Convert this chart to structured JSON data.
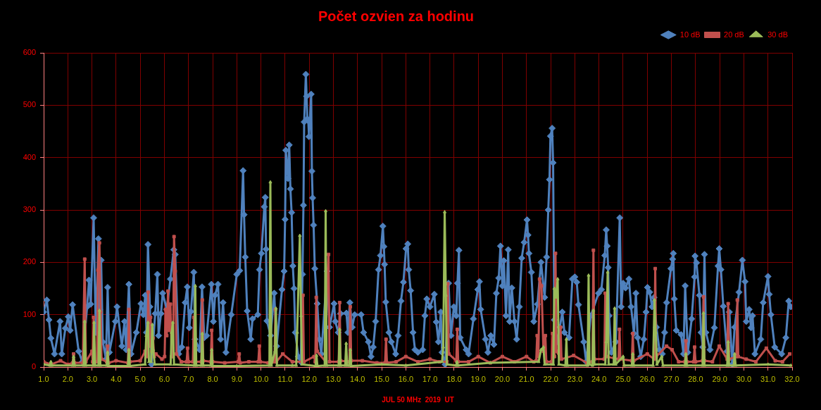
{
  "chart_data": {
    "type": "line",
    "title": "Počet ozvien za hodinu",
    "xlabel": "JUL 50 MHz  2019  UT",
    "xlim": [
      1,
      32
    ],
    "xticks": [
      {
        "value": 1,
        "label": "1.0"
      },
      {
        "value": 2,
        "label": "2.0"
      },
      {
        "value": 3,
        "label": "3.0"
      },
      {
        "value": 4,
        "label": "4.0"
      },
      {
        "value": 5,
        "label": "5.0"
      },
      {
        "value": 6,
        "label": "6.0"
      },
      {
        "value": 7,
        "label": "7.0"
      },
      {
        "value": 8,
        "label": "8.0"
      },
      {
        "value": 9,
        "label": "9.0"
      },
      {
        "value": 10,
        "label": "10.0"
      },
      {
        "value": 11,
        "label": "11.0"
      },
      {
        "value": 12,
        "label": "12.0"
      },
      {
        "value": 13,
        "label": "13.0"
      },
      {
        "value": 14,
        "label": "14.0"
      },
      {
        "value": 15,
        "label": "15.0"
      },
      {
        "value": 16,
        "label": "16.0"
      },
      {
        "value": 17,
        "label": "17.0"
      },
      {
        "value": 18,
        "label": "18.0"
      },
      {
        "value": 19,
        "label": "19.0"
      },
      {
        "value": 20,
        "label": "20.0"
      },
      {
        "value": 21,
        "label": "21.0"
      },
      {
        "value": 22,
        "label": "22.0"
      },
      {
        "value": 23,
        "label": "23.0"
      },
      {
        "value": 24,
        "label": "24.0"
      },
      {
        "value": 25,
        "label": "25.0"
      },
      {
        "value": 26,
        "label": "26.0"
      },
      {
        "value": 27,
        "label": "27.0"
      },
      {
        "value": 28,
        "label": "28.0"
      },
      {
        "value": 29,
        "label": "29.0"
      },
      {
        "value": 30,
        "label": "30.0"
      },
      {
        "value": 31,
        "label": "31.0"
      },
      {
        "value": 32,
        "label": "32.0"
      }
    ],
    "ylim": [
      0,
      600
    ],
    "yticks": [
      0,
      100,
      200,
      300,
      400,
      500,
      600
    ],
    "grid": true,
    "legend": "top right",
    "line_style": "solid",
    "series": [
      {
        "name": "10 dB",
        "color": "#4f81bd",
        "marker": "diamond",
        "x": [
          1,
          1.13,
          1.22,
          1.3,
          1.45,
          1.68,
          1.75,
          1.9,
          2.02,
          2.1,
          2.2,
          2.45,
          2.6,
          2.8,
          2.88,
          2.95,
          3.07,
          3.16,
          3.27,
          3.32,
          3.38,
          3.45,
          3.58,
          3.65,
          3.72,
          3.97,
          4.04,
          4.24,
          4.35,
          4.42,
          4.53,
          4.62,
          4.84,
          5.03,
          5.13,
          5.21,
          5.26,
          5.32,
          5.4,
          5.47,
          5.62,
          5.71,
          5.76,
          5.86,
          5.93,
          6.1,
          6.25,
          6.39,
          6.45,
          6.59,
          6.72,
          6.86,
          6.95,
          7.03,
          7.1,
          7.22,
          7.27,
          7.46,
          7.56,
          7.65,
          7.75,
          7.95,
          8.03,
          8.1,
          8.22,
          8.33,
          8.43,
          8.55,
          8.77,
          9,
          9.12,
          9.26,
          9.3,
          9.35,
          9.43,
          9.58,
          9.65,
          9.87,
          9.94,
          10.02,
          10.14,
          10.18,
          10.21,
          10.25,
          10.4,
          10.55,
          10.65,
          10.87,
          10.96,
          11,
          11.03,
          11.12,
          11.17,
          11.22,
          11.27,
          11.32,
          11.37,
          11.42,
          11.55,
          11.65,
          11.72,
          11.76,
          11.79,
          11.86,
          11.89,
          11.92,
          11.96,
          11.99,
          12.08,
          12.11,
          12.14,
          12.18,
          12.23,
          12.33,
          12.42,
          12.5,
          12.74,
          12.84,
          13.03,
          13.08,
          13.2,
          13.3,
          13.54,
          13.6,
          13.68,
          13.78,
          13.88,
          14.15,
          14.25,
          14.45,
          14.56,
          14.65,
          14.75,
          14.87,
          14.95,
          15.05,
          15.09,
          15.12,
          15.17,
          15.3,
          15.4,
          15.58,
          15.68,
          15.8,
          15.9,
          16.01,
          16.08,
          16.12,
          16.2,
          16.3,
          16.38,
          16.5,
          16.7,
          16.79,
          16.87,
          17,
          17.18,
          17.26,
          17.35,
          17.45,
          17.5,
          17.63,
          17.77,
          17.87,
          17.99,
          18.09,
          18.14,
          18.2,
          18.25,
          18.5,
          18.6,
          18.8,
          18.98,
          19.05,
          19.1,
          19.3,
          19.4,
          19.52,
          19.65,
          19.75,
          19.85,
          19.92,
          20,
          20.06,
          20.15,
          20.24,
          20.3,
          20.39,
          20.5,
          20.59,
          20.7,
          20.8,
          20.9,
          21.02,
          21.06,
          21.1,
          21.2,
          21.3,
          21.45,
          21.6,
          21.75,
          21.83,
          21.9,
          21.95,
          21.99,
          22.06,
          22.1,
          22.15,
          22.26,
          22.38,
          22.48,
          22.57,
          22.76,
          22.9,
          23,
          23.08,
          23.15,
          23.37,
          23.47,
          23.66,
          23.98,
          24.1,
          24.24,
          24.3,
          24.34,
          24.38,
          24.42,
          24.51,
          24.7,
          24.86,
          24.92,
          25,
          25.1,
          25.24,
          25.33,
          25.45,
          25.53,
          25.6,
          25.73,
          25.86,
          25.95,
          26.01,
          26.1,
          26.2,
          26.28,
          26.38,
          26.5,
          26.62,
          26.72,
          26.8,
          26.98,
          27.05,
          27.08,
          27.12,
          27.2,
          27.4,
          27.5,
          27.57,
          27.68,
          27.84,
          27.96,
          27.98,
          28.04,
          28.16,
          28.23,
          28.3,
          28.37,
          28.43,
          28.6,
          28.78,
          28.93,
          28.98,
          29.05,
          29.15,
          29.3,
          29.4,
          29.52,
          29.62,
          29.8,
          29.94,
          30.05,
          30.1,
          30.22,
          30.3,
          30.36,
          30.46,
          30.7,
          30.8,
          31,
          31.05,
          31.12,
          31.28,
          31.57,
          31.74,
          31.86,
          31.95
        ],
        "values": [
          105,
          128,
          90,
          55,
          25,
          87,
          25,
          74,
          96,
          70,
          119,
          30,
          10,
          115,
          166,
          120,
          285,
          66,
          245,
          110,
          204,
          48,
          15,
          152,
          28,
          87,
          115,
          40,
          87,
          33,
          158,
          25,
          66,
          121,
          100,
          137,
          66,
          234,
          115,
          5,
          102,
          177,
          60,
          102,
          141,
          110,
          168,
          224,
          215,
          25,
          38,
          123,
          153,
          75,
          106,
          181,
          53,
          33,
          153,
          56,
          60,
          158,
          87,
          137,
          158,
          53,
          123,
          28,
          100,
          177,
          184,
          375,
          291,
          210,
          107,
          53,
          92,
          100,
          186,
          217,
          306,
          324,
          225,
          88,
          60,
          141,
          40,
          148,
          183,
          282,
          414,
          360,
          424,
          340,
          295,
          193,
          150,
          66,
          20,
          10,
          177,
          309,
          468,
          559,
          517,
          474,
          470,
          440,
          521,
          374,
          323,
          271,
          188,
          121,
          53,
          25,
          183,
          76,
          121,
          87,
          66,
          102,
          103,
          66,
          123,
          76,
          100,
          100,
          66,
          48,
          20,
          38,
          87,
          186,
          213,
          269,
          230,
          196,
          124,
          66,
          48,
          25,
          60,
          126,
          162,
          226,
          235,
          186,
          146,
          66,
          33,
          28,
          33,
          98,
          130,
          115,
          139,
          86,
          48,
          105,
          28,
          5,
          160,
          60,
          115,
          98,
          160,
          223,
          56,
          33,
          25,
          92,
          148,
          163,
          110,
          53,
          28,
          60,
          43,
          141,
          170,
          231,
          155,
          203,
          98,
          224,
          87,
          151,
          87,
          53,
          115,
          208,
          238,
          281,
          252,
          217,
          181,
          87,
          120,
          200,
          133,
          210,
          300,
          358,
          441,
          456,
          390,
          90,
          48,
          76,
          105,
          66,
          56,
          168,
          172,
          162,
          119,
          48,
          10,
          98,
          141,
          148,
          213,
          262,
          231,
          190,
          98,
          28,
          48,
          285,
          115,
          160,
          151,
          168,
          115,
          64,
          141,
          56,
          20,
          53,
          105,
          152,
          143,
          115,
          133,
          76,
          33,
          25,
          66,
          123,
          188,
          206,
          217,
          130,
          70,
          62,
          25,
          155,
          28,
          92,
          172,
          212,
          199,
          137,
          66,
          38,
          215,
          66,
          33,
          75,
          193,
          226,
          186,
          116,
          30,
          105,
          5,
          76,
          143,
          204,
          163,
          87,
          110,
          75,
          98,
          25,
          53,
          123,
          173,
          139,
          100,
          38,
          25,
          56,
          126,
          115
        ]
      },
      {
        "name": "20 dB",
        "color": "#c0504d",
        "marker": "square",
        "x": [
          1,
          1.3,
          1.7,
          2,
          2.2,
          2.24,
          2.28,
          2.62,
          2.7,
          2.75,
          3,
          3.03,
          3.07,
          3.11,
          3.21,
          3.25,
          3.31,
          3.36,
          3.4,
          3.61,
          3.65,
          3.69,
          4,
          4.49,
          4.53,
          4.57,
          5,
          5.2,
          5.29,
          5.33,
          5.38,
          5.43,
          5.48,
          5.53,
          5.58,
          5.65,
          5.9,
          6.01,
          6.05,
          6.1,
          6.15,
          6.2,
          6.25,
          6.3,
          6.36,
          6.4,
          6.45,
          6.5,
          6.7,
          6.92,
          6.96,
          7,
          7.18,
          7.22,
          7.26,
          7.53,
          7.57,
          7.61,
          7.92,
          7.96,
          8,
          8.5,
          9.06,
          9.1,
          9.14,
          9.5,
          9.89,
          9.93,
          9.97,
          10.3,
          10.56,
          10.6,
          10.64,
          10.9,
          11.3,
          11.7,
          11.74,
          11.78,
          12.2,
          12.25,
          12.29,
          12.33,
          12.68,
          12.73,
          12.8,
          12.84,
          13.22,
          13.26,
          13.3,
          13.66,
          13.7,
          13.74,
          14.2,
          14.8,
          15.14,
          15.18,
          15.22,
          15.6,
          16,
          16.5,
          17,
          17.4,
          17.7,
          17.74,
          17.78,
          18.09,
          18.13,
          18.17,
          18.6,
          19,
          19.5,
          20,
          20.5,
          21,
          21.3,
          21.4,
          21.44,
          21.49,
          21.54,
          21.62,
          21.7,
          21.78,
          21.82,
          22.04,
          22.08,
          22.12,
          22.16,
          22.2,
          22.24,
          22.37,
          22.41,
          22.45,
          22.95,
          23.5,
          23.73,
          23.77,
          23.81,
          24.22,
          24.26,
          24.3,
          24.81,
          24.85,
          24.89,
          25.36,
          25.4,
          25.44,
          26,
          26.29,
          26.33,
          26.37,
          26.8,
          27.03,
          27.3,
          27.56,
          27.6,
          27.64,
          27.92,
          27.96,
          28,
          28.29,
          28.33,
          28.37,
          28.7,
          28.98,
          29.31,
          29.35,
          29.39,
          29.69,
          29.73,
          29.77,
          30.1,
          30.5,
          30.93,
          31.3,
          31.6,
          31.9
        ],
        "values": [
          10,
          5,
          12,
          5,
          8,
          25,
          8,
          8,
          206,
          10,
          30,
          10,
          95,
          10,
          10,
          185,
          237,
          105,
          15,
          10,
          40,
          8,
          12,
          8,
          110,
          10,
          12,
          30,
          20,
          143,
          40,
          95,
          30,
          55,
          20,
          25,
          15,
          20,
          110,
          60,
          145,
          70,
          120,
          20,
          20,
          249,
          183,
          25,
          10,
          10,
          36,
          10,
          10,
          95,
          10,
          10,
          128,
          12,
          10,
          70,
          10,
          8,
          10,
          25,
          8,
          10,
          10,
          40,
          10,
          8,
          10,
          110,
          10,
          25,
          10,
          10,
          137,
          10,
          20,
          10,
          133,
          30,
          10,
          155,
          215,
          10,
          10,
          123,
          12,
          10,
          115,
          12,
          12,
          8,
          8,
          53,
          8,
          10,
          20,
          10,
          15,
          10,
          10,
          159,
          25,
          12,
          72,
          10,
          10,
          20,
          8,
          20,
          10,
          20,
          10,
          12,
          60,
          20,
          168,
          155,
          30,
          60,
          10,
          10,
          64,
          20,
          20,
          217,
          30,
          20,
          76,
          15,
          22,
          8,
          10,
          223,
          15,
          15,
          141,
          20,
          15,
          72,
          15,
          12,
          64,
          12,
          25,
          15,
          188,
          20,
          40,
          33,
          10,
          10,
          50,
          10,
          10,
          38,
          10,
          12,
          134,
          12,
          10,
          40,
          15,
          121,
          15,
          20,
          128,
          20,
          15,
          10,
          36,
          12,
          10,
          25
        ]
      },
      {
        "name": "30 dB",
        "color": "#9bbb59",
        "marker": "triangle",
        "x": [
          1,
          1.26,
          1.3,
          1.34,
          2.2,
          2.24,
          2.28,
          2.66,
          2.7,
          2.74,
          3.05,
          3.09,
          3.13,
          3.27,
          3.31,
          3.35,
          3.61,
          3.65,
          3.69,
          4.49,
          4.53,
          4.57,
          5.2,
          5.25,
          5.32,
          5.36,
          5.45,
          5.5,
          5.54,
          5.6,
          6.26,
          6.3,
          6.35,
          6.4,
          7.24,
          7.28,
          7.32,
          7.53,
          7.57,
          7.61,
          7.92,
          7.96,
          8,
          9,
          10.35,
          10.39,
          10.43,
          10.58,
          10.62,
          10.66,
          11.3,
          11.46,
          11.5,
          11.61,
          11.66,
          11.7,
          12.26,
          12.3,
          12.34,
          12.64,
          12.68,
          12.72,
          13.22,
          13.26,
          13.3,
          13.49,
          13.53,
          13.57,
          13.66,
          13.7,
          13.74,
          15,
          16,
          17.5,
          17.55,
          17.61,
          17.66,
          17.7,
          18.08,
          18.12,
          18.16,
          19.5,
          21.5,
          21.6,
          21.7,
          21.75,
          22.11,
          22.15,
          22.22,
          22.29,
          22.34,
          22.61,
          22.65,
          22.69,
          23.53,
          23.57,
          23.61,
          23.73,
          23.77,
          23.81,
          24.26,
          24.3,
          24.36,
          24.4,
          24.61,
          24.65,
          24.69,
          25,
          25.04,
          25.36,
          25.4,
          25.44,
          26.24,
          26.3,
          26.35,
          26.4,
          26.6,
          26.65,
          27.56,
          27.6,
          27.64,
          28.29,
          28.33,
          28.37,
          29.31,
          29.35,
          29.39,
          29.58,
          29.62,
          29.66,
          31,
          31.95
        ],
        "values": [
          5,
          3,
          10,
          3,
          3,
          20,
          3,
          3,
          87,
          3,
          3,
          85,
          3,
          3,
          108,
          3,
          3,
          28,
          2,
          2,
          33,
          2,
          5,
          60,
          85,
          10,
          10,
          81,
          33,
          5,
          5,
          66,
          85,
          5,
          3,
          155,
          3,
          3,
          64,
          3,
          3,
          33,
          2,
          2,
          3,
          353,
          3,
          30,
          112,
          3,
          3,
          3,
          66,
          251,
          98,
          5,
          2,
          22,
          2,
          3,
          298,
          3,
          3,
          72,
          3,
          3,
          45,
          3,
          3,
          33,
          2,
          5,
          3,
          10,
          38,
          296,
          137,
          5,
          3,
          10,
          3,
          8,
          10,
          33,
          38,
          5,
          5,
          150,
          133,
          168,
          5,
          3,
          53,
          3,
          3,
          175,
          5,
          3,
          108,
          5,
          5,
          48,
          181,
          5,
          5,
          112,
          5,
          20,
          3,
          3,
          25,
          3,
          3,
          128,
          66,
          5,
          20,
          3,
          3,
          25,
          3,
          3,
          103,
          3,
          3,
          48,
          3,
          3,
          25,
          3,
          5,
          3
        ]
      }
    ]
  }
}
